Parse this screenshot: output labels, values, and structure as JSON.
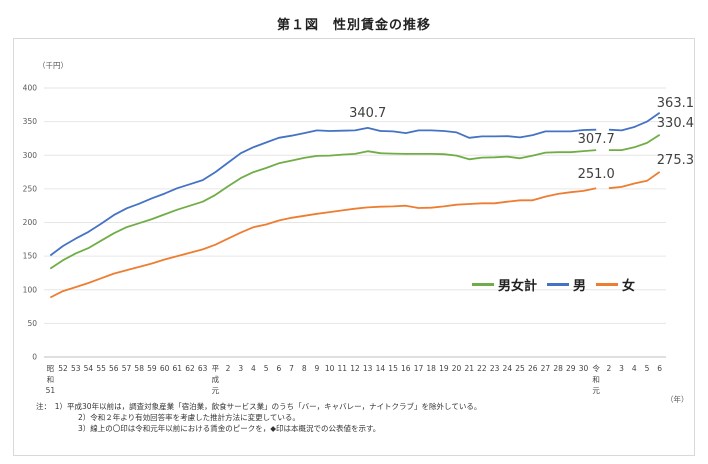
{
  "page": {
    "title": "第１図　性別賃金の推移"
  },
  "chart_data": {
    "type": "line",
    "title": "第１図　性別賃金の推移",
    "ylabel": "（千円）",
    "xlabel": "（年）",
    "ylim": [
      0,
      400
    ],
    "yticks": [
      0,
      50,
      100,
      150,
      200,
      250,
      300,
      350,
      400
    ],
    "grid": true,
    "legend_position": "right",
    "categories": [
      "昭和51",
      "52",
      "53",
      "54",
      "55",
      "56",
      "57",
      "58",
      "59",
      "60",
      "61",
      "62",
      "63",
      "平成元",
      "2",
      "3",
      "4",
      "5",
      "6",
      "7",
      "8",
      "9",
      "10",
      "11",
      "12",
      "13",
      "14",
      "15",
      "16",
      "17",
      "18",
      "19",
      "20",
      "21",
      "22",
      "23",
      "24",
      "25",
      "26",
      "27",
      "28",
      "29",
      "30",
      "令和元",
      "2",
      "3",
      "4",
      "5",
      "6"
    ],
    "x_tick_labels": [
      "昭\n和\n51",
      "52",
      "53",
      "54",
      "55",
      "56",
      "57",
      "58",
      "59",
      "60",
      "61",
      "62",
      "63",
      "平\n成\n元",
      "2",
      "3",
      "4",
      "5",
      "6",
      "7",
      "8",
      "9",
      "10",
      "11",
      "12",
      "13",
      "14",
      "15",
      "16",
      "17",
      "18",
      "19",
      "20",
      "21",
      "22",
      "23",
      "24",
      "25",
      "26",
      "27",
      "28",
      "29",
      "30",
      "令\n和\n元",
      "2",
      "3",
      "4",
      "5",
      "6"
    ],
    "series": [
      {
        "name": "男女計",
        "color": "#70ad47",
        "segment1": [
          131.5,
          144,
          154,
          162,
          173,
          184,
          193,
          199,
          205,
          212,
          219,
          225,
          231,
          241,
          254,
          266,
          275,
          281,
          288,
          292,
          296,
          299,
          299.5,
          301,
          302,
          306,
          303,
          302.5,
          302,
          302,
          302,
          301.5,
          299.5,
          294,
          296.5,
          297,
          298,
          295.5,
          299.5,
          304,
          304.5,
          304.5,
          306.2,
          307.7
        ],
        "segment2": [
          307.7,
          307.7,
          311.8,
          318.3,
          330.4
        ]
      },
      {
        "name": "男",
        "color": "#4472c4",
        "segment1": [
          151,
          165,
          176,
          186,
          198,
          211,
          221,
          228,
          236,
          243,
          251,
          257,
          263,
          275,
          289,
          303,
          312,
          319,
          326,
          329,
          333,
          337,
          336,
          336.5,
          337,
          340.7,
          336,
          335.5,
          333,
          337,
          337,
          336,
          334,
          326,
          328,
          328,
          328.5,
          326.5,
          330,
          335.5,
          335.5,
          335.5,
          337.6,
          338
        ],
        "segment2": [
          338,
          337,
          342,
          350,
          363.1
        ]
      },
      {
        "name": "女",
        "color": "#ed7d31",
        "segment1": [
          88.5,
          98,
          104,
          110,
          117,
          124,
          129,
          134,
          139,
          145,
          150,
          155,
          160,
          167,
          176,
          185,
          193,
          197,
          203,
          207,
          210,
          213,
          215.5,
          218,
          220.5,
          222.5,
          223.5,
          224,
          225,
          221.5,
          222,
          224,
          226.5,
          227.5,
          228.5,
          228.5,
          231,
          233,
          233,
          238.5,
          242.5,
          245,
          247,
          251.0
        ],
        "segment2": [
          251,
          253,
          258,
          262,
          275.3
        ]
      }
    ],
    "annotations": [
      {
        "text": "340.7",
        "series": "男",
        "index": 25
      },
      {
        "text": "307.7",
        "series": "男女計",
        "index": 43
      },
      {
        "text": "251.0",
        "series": "女",
        "index": 43
      },
      {
        "text": "363.1",
        "series": "男",
        "index": 48
      },
      {
        "text": "330.4",
        "series": "男女計",
        "index": 48
      },
      {
        "text": "275.3",
        "series": "女",
        "index": 48
      }
    ]
  },
  "notes": {
    "n1": "注：　1）平成30年以前は，調査対象産業「宿泊業，飲食サービス業」のうち「バー，キャバレー，ナイトクラブ」を除外している。",
    "n2": "2）令和２年より有効回答率を考慮した推計方法に変更している。",
    "n3": "3）線上の〇印は令和元年以前における賃金のピークを，◆印は本概況での公表値を示す。"
  }
}
